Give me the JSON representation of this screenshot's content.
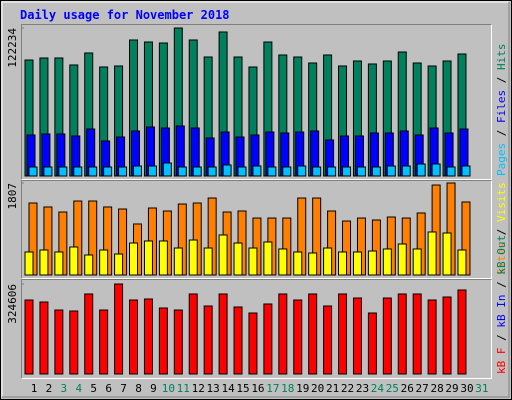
{
  "title": "Daily usage for November 2018",
  "legend_separator": "/",
  "weekends": [
    3,
    4,
    10,
    11,
    17,
    18,
    24,
    25,
    31
  ],
  "weekend_color": "#00805c",
  "chart_data": [
    {
      "type": "bar",
      "ylim": [
        0,
        122234
      ],
      "yticks": [
        122234
      ],
      "series": [
        {
          "name": "Pages",
          "color": "#00c0ff",
          "values": [
            7430,
            7430,
            7430,
            7430,
            7430,
            7430,
            7430,
            8260,
            8260,
            10740,
            7430,
            7430,
            7430,
            9090,
            7430,
            8260,
            7430,
            7430,
            8260,
            7430,
            7430,
            7430,
            7430,
            7430,
            8260,
            8260,
            9910,
            9910,
            7430,
            8260,
            null
          ]
        },
        {
          "name": "Files",
          "color": "#0000ff",
          "values": [
            33870,
            34690,
            34690,
            33040,
            38820,
            28910,
            32210,
            37170,
            40470,
            39650,
            41300,
            39650,
            31390,
            36340,
            32210,
            33870,
            36340,
            35520,
            36340,
            37170,
            29740,
            33040,
            33040,
            35520,
            35520,
            37170,
            33870,
            39650,
            35520,
            38820,
            null
          ]
        },
        {
          "name": "Hits",
          "color": "#00805c",
          "values": [
            95800,
            97470,
            97470,
            91690,
            101600,
            90030,
            90860,
            112340,
            110680,
            109860,
            122234,
            112340,
            98290,
            118940,
            98290,
            90030,
            110680,
            99940,
            98290,
            93330,
            99940,
            90860,
            94990,
            92510,
            94990,
            102420,
            93330,
            90860,
            94990,
            100770,
            null
          ]
        }
      ]
    },
    {
      "type": "bar",
      "ylim": [
        0,
        1807
      ],
      "yticks": [
        1807
      ],
      "series": [
        {
          "name": "Sites",
          "color": "#ff8000",
          "values": [
            1414,
            1336,
            1237,
            1453,
            1453,
            1336,
            1296,
            1002,
            1316,
            1257,
            1394,
            1414,
            1512,
            1237,
            1257,
            1119,
            1119,
            1119,
            1512,
            1512,
            1257,
            1060,
            1119,
            1080,
            1139,
            1119,
            1218,
            1767,
            1807,
            1434,
            null
          ]
        },
        {
          "name": "Visits",
          "color": "#ffff00",
          "values": [
            452,
            491,
            452,
            550,
            393,
            491,
            412,
            628,
            668,
            668,
            530,
            687,
            530,
            786,
            628,
            530,
            648,
            511,
            452,
            432,
            530,
            452,
            452,
            471,
            511,
            609,
            511,
            845,
            825,
            491,
            null
          ]
        }
      ]
    },
    {
      "type": "bar",
      "ylim": [
        0,
        324606
      ],
      "yticks": [
        324606
      ],
      "categories": [
        "1",
        "2",
        "3",
        "4",
        "5",
        "6",
        "7",
        "8",
        "9",
        "10",
        "11",
        "12",
        "13",
        "14",
        "15",
        "16",
        "17",
        "18",
        "19",
        "20",
        "21",
        "22",
        "23",
        "24",
        "25",
        "26",
        "27",
        "28",
        "29",
        "30",
        "31"
      ],
      "series": [
        {
          "name": "kB F",
          "color": "#ff0000",
          "values": [
            266900,
            259700,
            230800,
            227200,
            288600,
            230800,
            324606,
            266900,
            270500,
            238100,
            230800,
            288600,
            245300,
            288600,
            241700,
            220000,
            252500,
            288600,
            266900,
            288600,
            245300,
            288600,
            274100,
            220000,
            274100,
            288600,
            288600,
            266900,
            277700,
            303000,
            null
          ]
        }
      ],
      "extra_legend": [
        {
          "name": "kB In",
          "color": "#0000ff"
        },
        {
          "name": "kB Out",
          "color": "#00805c"
        }
      ]
    }
  ]
}
